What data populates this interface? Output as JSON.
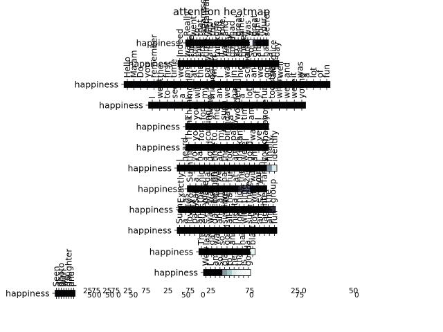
{
  "chart_data": {
    "type": "heatmap",
    "title": "attention heatmap",
    "colormap": "bone",
    "rows": [
      {
        "label": "happiness",
        "tokens": [
          "Really,",
          "I",
          "went",
          "to",
          "that",
          "Japanese",
          "restaurant",
          "with",
          "the",
          "one",
          "you",
          "love,",
          "and",
          "I",
          "had",
          "a",
          "great",
          "time.",
          "It",
          "was",
          "a",
          "great",
          "time",
          "for",
          "your",
          "secret"
        ],
        "weights": [
          0.02,
          0.02,
          0.03,
          0.02,
          0.02,
          0.02,
          0.02,
          0.02,
          0.03,
          0.02,
          0.02,
          0.02,
          0.02,
          0.03,
          0.02,
          0.02,
          0.02,
          0.02,
          0.03,
          0.02,
          0.95,
          0.2,
          0.02,
          0.02,
          0.02,
          0.02
        ]
      },
      {
        "label": "happiness",
        "tokens": [
          "Indeed",
          "I",
          "was",
          "there",
          "for",
          "the",
          "first",
          "time",
          "and",
          "I",
          "think",
          "it",
          "was",
          "really",
          "good",
          "to",
          "eat",
          "there",
          "and",
          "so",
          "on",
          "and",
          "I",
          "had",
          "a",
          "nice",
          "day"
        ],
        "weights": [
          0.02,
          0.02,
          0.02,
          0.02,
          0.02,
          0.02,
          0.02,
          0.02,
          0.02,
          0.02,
          0.02,
          0.02,
          0.02,
          0.02,
          0.02,
          0.02,
          0.02,
          0.02,
          0.02,
          0.02,
          0.02,
          0.02,
          0.02,
          0.02,
          0.02,
          0.02,
          0.02
        ]
      },
      {
        "label": "happiness",
        "tokens": [
          "Hello",
          "Ma'am",
          "Do",
          "you",
          "remember",
          "the",
          "first",
          "time",
          "we",
          "met",
          "at",
          "the",
          "party",
          "when",
          "I",
          "was",
          "in",
          "high",
          "school",
          "and",
          "we",
          "got",
          "along",
          "well",
          "and",
          "it",
          "was",
          "a",
          "lot",
          "of",
          "fun"
        ],
        "weights": [
          0.02,
          0.02,
          0.02,
          0.02,
          0.02,
          0.02,
          0.02,
          0.02,
          0.02,
          0.02,
          0.02,
          0.02,
          0.02,
          0.02,
          0.02,
          0.02,
          0.02,
          0.02,
          0.02,
          0.02,
          0.02,
          0.02,
          0.02,
          0.02,
          0.02,
          0.02,
          0.02,
          0.02,
          0.02,
          0.02,
          0.02
        ]
      },
      {
        "label": "happiness",
        "tokens": [
          "I",
          "went",
          "to",
          "see",
          "a",
          "movie",
          "with",
          "my",
          "friends",
          "and",
          "we",
          "had",
          "a",
          "lot",
          "of",
          "fun",
          "together",
          "when",
          "we",
          "were",
          "young"
        ],
        "weights": [
          0.02,
          0.02,
          0.02,
          0.02,
          0.02,
          0.02,
          0.02,
          0.02,
          0.02,
          0.02,
          0.02,
          0.02,
          0.02,
          0.02,
          0.02,
          0.02,
          0.02,
          0.02,
          0.02,
          0.02,
          0.02
        ]
      },
      {
        "label": "happiness",
        "tokens": [
          "Thank",
          "you",
          "for",
          "giving",
          "me",
          "such",
          "a",
          "wonderful",
          "time",
          "and",
          "I",
          "hope"
        ],
        "weights": [
          0.02,
          0.02,
          0.02,
          0.02,
          0.02,
          0.02,
          0.02,
          0.02,
          0.02,
          0.02,
          0.02,
          0.02
        ]
      },
      {
        "label": "happiness",
        "tokens": [
          "Thank",
          "you",
          "for",
          "coming",
          "to",
          "my",
          "birthday",
          "party",
          "and",
          "I",
          "was",
          "very",
          "happy"
        ],
        "weights": [
          0.02,
          0.02,
          0.02,
          0.02,
          0.02,
          0.02,
          0.02,
          0.02,
          0.02,
          0.02,
          0.02,
          0.02,
          0.02
        ]
      },
      {
        "label": "happiness",
        "tokens": [
          "I",
          "heard",
          "that",
          "you",
          "had",
          "a",
          "good",
          "time",
          "and",
          "the",
          "food",
          "and",
          "drinks",
          "were",
          "good",
          "and",
          "I",
          "could",
          "finally",
          "identify"
        ],
        "weights": [
          0.02,
          0.02,
          0.02,
          0.02,
          0.02,
          0.02,
          0.02,
          0.02,
          0.02,
          0.02,
          0.02,
          0.02,
          0.02,
          0.02,
          0.02,
          0.02,
          0.02,
          0.02,
          0.55,
          0.9
        ]
      },
      {
        "label": "happiness",
        "tokens": [
          "Such",
          "a",
          "nice",
          "day",
          "and",
          "we",
          "had",
          "fun",
          "at",
          "the",
          "zoo",
          "with",
          "our",
          "family"
        ],
        "weights": [
          0.02,
          0.02,
          0.02,
          0.02,
          0.02,
          0.02,
          0.02,
          0.02,
          0.02,
          0.25,
          0.4,
          0.02,
          0.02,
          0.02
        ]
      },
      {
        "label": "happiness",
        "tokens": [
          "Exactly",
          "as",
          "you",
          "said",
          "the",
          "place",
          "was",
          "beautiful",
          "and",
          "we",
          "had",
          "a",
          "nice",
          "time",
          "there",
          "with",
          "everyone",
          "in",
          "the",
          "group"
        ],
        "weights": [
          0.02,
          0.02,
          0.02,
          0.02,
          0.02,
          0.02,
          0.02,
          0.02,
          0.02,
          0.02,
          0.02,
          0.02,
          0.02,
          0.02,
          0.02,
          0.02,
          0.02,
          0.02,
          0.08,
          0.2
        ]
      },
      {
        "label": "happiness",
        "tokens": [
          "Such",
          "a",
          "lovely",
          "party",
          "and",
          "everyone",
          "was",
          "dancing",
          "and",
          "singing",
          "all",
          "night",
          "long",
          "with",
          "such",
          "joy",
          "and",
          "laughter",
          "and",
          "fun"
        ],
        "weights": [
          0.02,
          0.02,
          0.02,
          0.02,
          0.02,
          0.02,
          0.02,
          0.02,
          0.02,
          0.02,
          0.02,
          0.02,
          0.02,
          0.02,
          0.02,
          0.02,
          0.02,
          0.02,
          0.02,
          0.02
        ]
      },
      {
        "label": "happiness",
        "tokens": [
          "The",
          "last",
          "day",
          "was",
          "so",
          "good",
          "and",
          "I",
          "had",
          "a",
          "blast"
        ],
        "weights": [
          0.02,
          0.02,
          0.02,
          0.02,
          0.02,
          0.02,
          0.02,
          0.02,
          0.02,
          0.02,
          0.95
        ]
      },
      {
        "label": "happiness",
        "tokens": [
          "Wow",
          "I",
          "am",
          "so",
          "glad",
          "to",
          "hear",
          "that",
          "is",
          "good"
        ],
        "weights": [
          0.02,
          0.02,
          0.02,
          0.02,
          0.6,
          0.75,
          0.9,
          0.95,
          0.97,
          0.98
        ]
      },
      {
        "label": "happiness",
        "tokens": [
          "Seen",
          "a",
          "photo",
          "with",
          "my",
          "daughter",
          "and",
          "I"
        ],
        "weights": [
          0.02,
          0.02,
          0.02,
          0.02,
          0.02,
          0.02,
          0.02,
          0.02
        ]
      }
    ],
    "overlap_tick_labels": [
      "25",
      "50",
      "75",
      "0",
      "25",
      "50",
      "75",
      "0",
      "25",
      "50",
      "75",
      "25",
      "50",
      "75",
      "0",
      "25",
      "75",
      "0",
      "25",
      "75",
      "0",
      "50",
      "0"
    ]
  }
}
